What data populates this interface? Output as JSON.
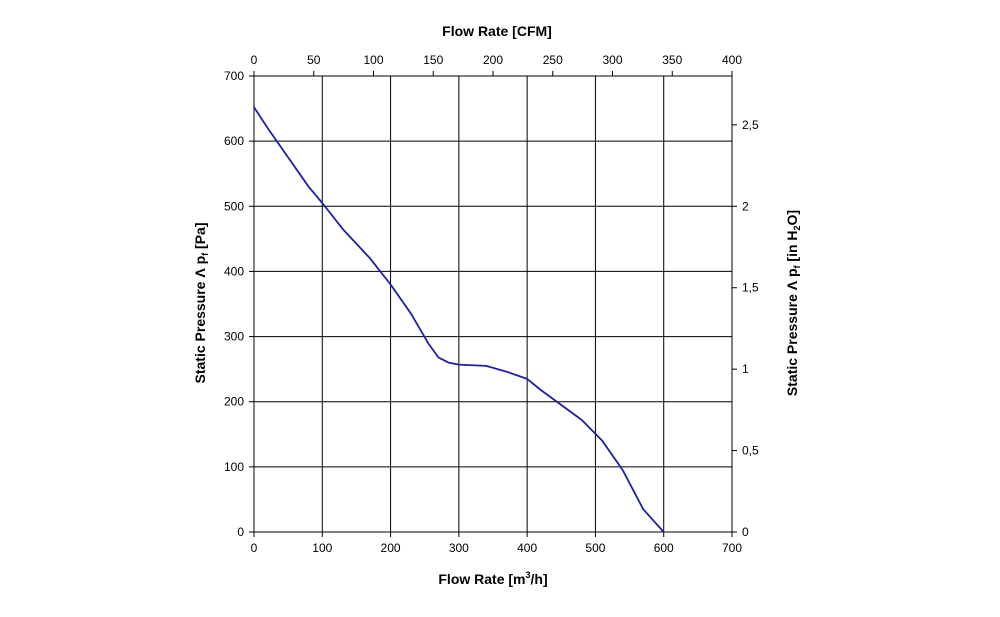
{
  "chart_data": {
    "type": "line",
    "title": "",
    "xlabel_bottom_main": "Flow Rate [m",
    "xlabel_bottom_sup": "3",
    "xlabel_bottom_end": "/h]",
    "xlabel_top": "Flow Rate [CFM]",
    "ylabel_left_main": "Static Pressure Λ p",
    "ylabel_left_sub": "f",
    "ylabel_left_end": " [Pa]",
    "ylabel_right_main": "Static Pressure Λ p",
    "ylabel_right_sub": "f",
    "ylabel_right_mid": " [in H",
    "ylabel_right_sub2": "2",
    "ylabel_right_end": "O]",
    "xlim_bottom": [
      0,
      700
    ],
    "ylim_left": [
      0,
      700
    ],
    "xlim_top": [
      0,
      400
    ],
    "ylim_right": [
      0,
      2.8
    ],
    "grid": true,
    "x_ticks_bottom": [
      "0",
      "100",
      "200",
      "300",
      "400",
      "500",
      "600",
      "700"
    ],
    "y_ticks_left": [
      "0",
      "100",
      "200",
      "300",
      "400",
      "500",
      "600",
      "700"
    ],
    "x_ticks_top": [
      "0",
      "50",
      "100",
      "150",
      "200",
      "250",
      "300",
      "350",
      "400"
    ],
    "y_ticks_right": [
      "0",
      "0,5",
      "1",
      "1,5",
      "2",
      "2,5"
    ],
    "series": [
      {
        "color": "#1f1fa8",
        "x": [
          0,
          20,
          50,
          80,
          100,
          130,
          170,
          200,
          230,
          255,
          270,
          285,
          300,
          340,
          370,
          400,
          420,
          450,
          480,
          510,
          540,
          570,
          600
        ],
        "y": [
          652,
          620,
          575,
          530,
          505,
          465,
          420,
          380,
          335,
          290,
          268,
          260,
          257,
          255,
          246,
          235,
          218,
          195,
          172,
          140,
          95,
          35,
          0
        ]
      }
    ]
  }
}
